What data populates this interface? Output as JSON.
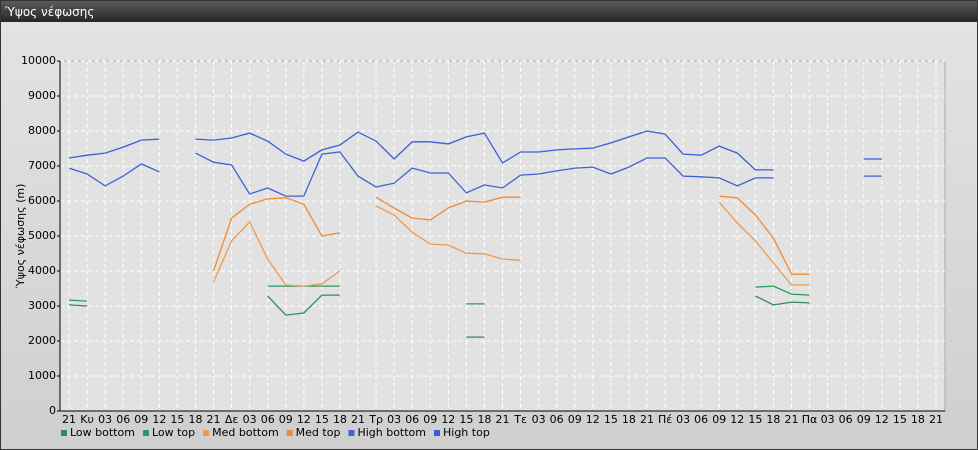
{
  "chart_data": {
    "type": "line",
    "title": "Ύψος νέφωσης",
    "y_label": "Ύψος νέφωσης (m)",
    "categories": [
      "21",
      "Κυ",
      "03",
      "06",
      "09",
      "12",
      "15",
      "18",
      "21",
      "Δε",
      "03",
      "06",
      "09",
      "12",
      "15",
      "18",
      "21",
      "Τρ",
      "03",
      "06",
      "09",
      "12",
      "15",
      "18",
      "21",
      "Τε",
      "03",
      "06",
      "09",
      "12",
      "15",
      "18",
      "21",
      "Πέ",
      "03",
      "06",
      "09",
      "12",
      "15",
      "18",
      "21",
      "Πα",
      "03",
      "06",
      "09",
      "12",
      "15",
      "18",
      "21"
    ],
    "ylim": [
      0,
      10000
    ],
    "yticks": [
      0,
      1000,
      2000,
      3000,
      4000,
      5000,
      6000,
      7000,
      8000,
      9000,
      10000
    ],
    "grid": true,
    "legend": "bottom",
    "series": [
      {
        "name": "Low bottom",
        "color": "#2e8b57",
        "values": [
          3030,
          3000,
          null,
          null,
          null,
          null,
          null,
          null,
          null,
          null,
          null,
          3290,
          2740,
          2800,
          3310,
          3310,
          null,
          null,
          null,
          null,
          null,
          null,
          2110,
          2110,
          null,
          null,
          null,
          null,
          null,
          null,
          null,
          null,
          null,
          null,
          null,
          null,
          null,
          null,
          3290,
          3030,
          3110,
          3090,
          null,
          null,
          null,
          null,
          null,
          null,
          null
        ]
      },
      {
        "name": "Low top",
        "color": "#2a9a5e",
        "values": [
          3170,
          3140,
          null,
          null,
          null,
          null,
          null,
          null,
          null,
          null,
          null,
          3570,
          3570,
          3570,
          3570,
          3570,
          null,
          null,
          null,
          null,
          null,
          null,
          3060,
          3060,
          null,
          null,
          null,
          null,
          null,
          null,
          null,
          null,
          null,
          null,
          null,
          null,
          null,
          null,
          3540,
          3570,
          3340,
          3310,
          null,
          null,
          null,
          null,
          null,
          null,
          null
        ]
      },
      {
        "name": "Med bottom",
        "color": "#ee9a4c",
        "values": [
          null,
          null,
          null,
          null,
          null,
          null,
          null,
          null,
          3690,
          4860,
          5400,
          4340,
          3600,
          3570,
          3630,
          4000,
          null,
          5860,
          5600,
          5110,
          4770,
          4740,
          4510,
          4490,
          4340,
          4310,
          null,
          null,
          null,
          null,
          null,
          null,
          null,
          null,
          null,
          null,
          5970,
          5370,
          4860,
          4230,
          3600,
          3600,
          null,
          null,
          null,
          null,
          null,
          null,
          null
        ]
      },
      {
        "name": "Med top",
        "color": "#f08c30",
        "values": [
          null,
          null,
          null,
          null,
          null,
          null,
          null,
          null,
          4000,
          5510,
          5910,
          6060,
          6090,
          5910,
          5000,
          5090,
          null,
          6110,
          5800,
          5510,
          5460,
          5800,
          6000,
          5970,
          6110,
          6110,
          null,
          null,
          null,
          null,
          null,
          null,
          null,
          null,
          null,
          null,
          6140,
          6090,
          5600,
          4940,
          3910,
          3910,
          null,
          null,
          null,
          null,
          null,
          null,
          null
        ]
      },
      {
        "name": "High bottom",
        "color": "#3d64d2",
        "values": [
          6940,
          6770,
          6430,
          6710,
          7060,
          6830,
          null,
          7370,
          7110,
          7030,
          6200,
          6370,
          6140,
          6140,
          7340,
          7400,
          6710,
          6400,
          6510,
          6940,
          6800,
          6800,
          6230,
          6460,
          6370,
          6740,
          6770,
          6860,
          6940,
          6970,
          6770,
          6970,
          7230,
          7230,
          6710,
          6690,
          6660,
          6430,
          6660,
          6660,
          null,
          null,
          null,
          null,
          6710,
          6710,
          null,
          null,
          null
        ]
      },
      {
        "name": "High top",
        "color": "#3a5ed8",
        "values": [
          7230,
          7310,
          7370,
          7540,
          7740,
          7770,
          null,
          7770,
          7740,
          7800,
          7940,
          7710,
          7340,
          7140,
          7460,
          7600,
          7970,
          7710,
          7200,
          7690,
          7690,
          7630,
          7830,
          7940,
          7090,
          7400,
          7400,
          7460,
          7490,
          7510,
          7660,
          7830,
          8000,
          7910,
          7340,
          7310,
          7570,
          7370,
          6890,
          6890,
          null,
          null,
          null,
          null,
          7200,
          7200,
          null,
          null,
          null
        ]
      }
    ]
  }
}
